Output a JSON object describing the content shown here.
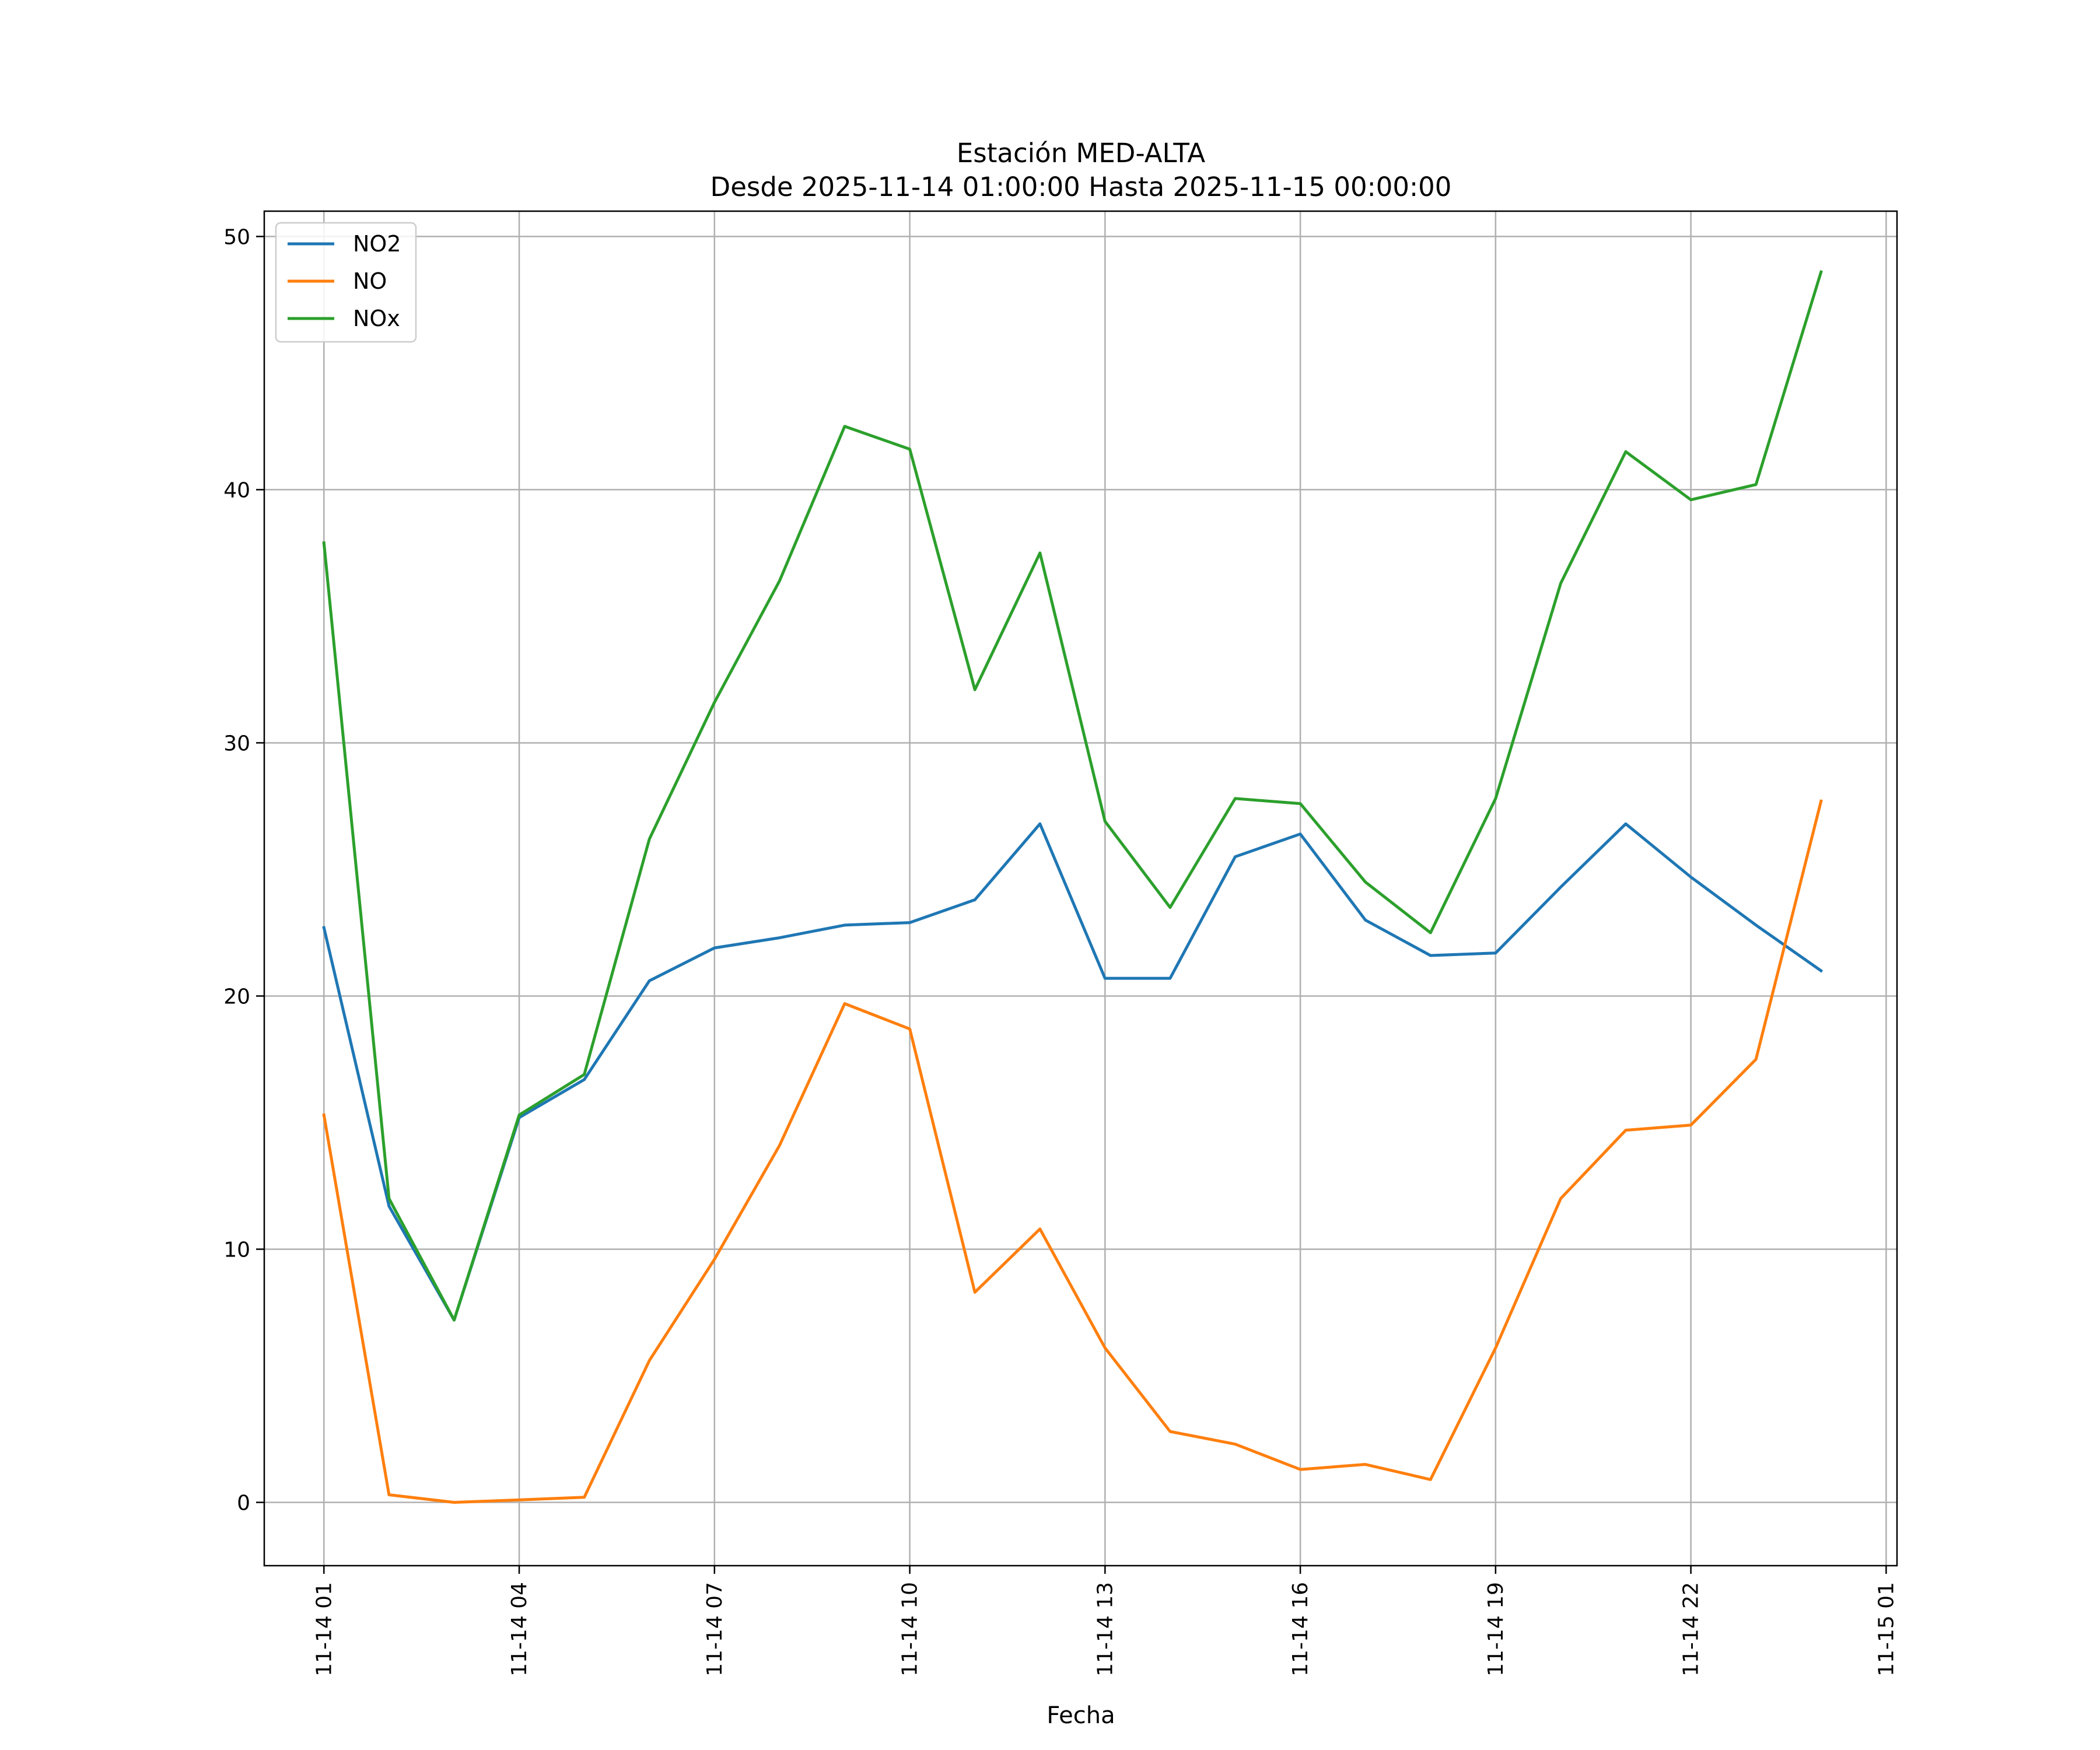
{
  "chart_data": {
    "type": "line",
    "title": "Estación MED-ALTA",
    "subtitle": "Desde 2025-11-14 01:00:00 Hasta 2025-11-15 00:00:00",
    "xlabel": "Fecha",
    "ylabel": "",
    "x": [
      "2025-11-14 01:00",
      "2025-11-14 02:00",
      "2025-11-14 03:00",
      "2025-11-14 04:00",
      "2025-11-14 05:00",
      "2025-11-14 06:00",
      "2025-11-14 07:00",
      "2025-11-14 08:00",
      "2025-11-14 09:00",
      "2025-11-14 10:00",
      "2025-11-14 11:00",
      "2025-11-14 12:00",
      "2025-11-14 13:00",
      "2025-11-14 14:00",
      "2025-11-14 15:00",
      "2025-11-14 16:00",
      "2025-11-14 17:00",
      "2025-11-14 18:00",
      "2025-11-14 19:00",
      "2025-11-14 20:00",
      "2025-11-14 21:00",
      "2025-11-14 22:00",
      "2025-11-14 23:00",
      "2025-11-15 00:00"
    ],
    "xlim": [
      "2025-11-14 00:05",
      "2025-11-15 01:10"
    ],
    "ylim": [
      -2.5,
      51
    ],
    "x_ticks": [
      {
        "value": "2025-11-14 01:00",
        "label": "11-14 01"
      },
      {
        "value": "2025-11-14 04:00",
        "label": "11-14 04"
      },
      {
        "value": "2025-11-14 07:00",
        "label": "11-14 07"
      },
      {
        "value": "2025-11-14 10:00",
        "label": "11-14 10"
      },
      {
        "value": "2025-11-14 13:00",
        "label": "11-14 13"
      },
      {
        "value": "2025-11-14 16:00",
        "label": "11-14 16"
      },
      {
        "value": "2025-11-14 19:00",
        "label": "11-14 19"
      },
      {
        "value": "2025-11-14 22:00",
        "label": "11-14 22"
      },
      {
        "value": "2025-11-15 01:00",
        "label": "11-15 01"
      }
    ],
    "y_ticks": [
      {
        "value": 0,
        "label": "0"
      },
      {
        "value": 10,
        "label": "10"
      },
      {
        "value": 20,
        "label": "20"
      },
      {
        "value": 30,
        "label": "30"
      },
      {
        "value": 40,
        "label": "40"
      },
      {
        "value": 50,
        "label": "50"
      }
    ],
    "grid": true,
    "legend_position": "top-left",
    "series": [
      {
        "name": "NO2",
        "color": "#1f77b4",
        "values": [
          22.7,
          11.7,
          7.2,
          15.2,
          16.7,
          20.6,
          21.9,
          22.3,
          22.8,
          22.9,
          23.8,
          26.8,
          20.7,
          20.7,
          25.5,
          26.4,
          23.0,
          21.6,
          21.7,
          24.3,
          26.8,
          24.7,
          22.8,
          21.0
        ]
      },
      {
        "name": "NO",
        "color": "#ff7f0e",
        "values": [
          15.3,
          0.3,
          0.0,
          0.1,
          0.2,
          5.6,
          9.6,
          14.1,
          19.7,
          18.7,
          8.3,
          10.8,
          6.1,
          2.8,
          2.3,
          1.3,
          1.5,
          0.9,
          6.1,
          12.0,
          14.7,
          14.9,
          17.5,
          27.7
        ]
      },
      {
        "name": "NOx",
        "color": "#2ca02c",
        "values": [
          37.9,
          12.0,
          7.2,
          15.3,
          16.9,
          26.2,
          31.6,
          36.4,
          42.5,
          41.6,
          32.1,
          37.5,
          26.9,
          23.5,
          27.8,
          27.6,
          24.5,
          22.5,
          27.8,
          36.3,
          41.5,
          39.6,
          40.2,
          48.6
        ]
      }
    ]
  }
}
